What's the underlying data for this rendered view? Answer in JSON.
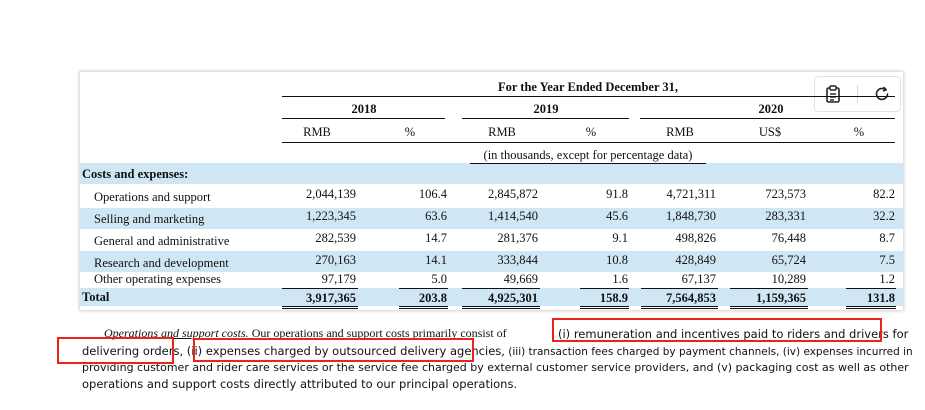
{
  "table": {
    "period_heading": "For the Year Ended December 31,",
    "years": [
      "2018",
      "2019",
      "2020"
    ],
    "units": [
      "RMB",
      "%",
      "RMB",
      "%",
      "RMB",
      "US$",
      "%"
    ],
    "unit_note": "(in thousands, except for percentage data)",
    "section_label": "Costs and expenses:",
    "rows": [
      {
        "label": "Operations and support",
        "values": [
          "2,044,139",
          "106.4",
          "2,845,872",
          "91.8",
          "4,721,311",
          "723,573",
          "82.2"
        ]
      },
      {
        "label": "Selling and marketing",
        "values": [
          "1,223,345",
          "63.6",
          "1,414,540",
          "45.6",
          "1,848,730",
          "283,331",
          "32.2"
        ]
      },
      {
        "label": "General and administrative",
        "values": [
          "282,539",
          "14.7",
          "281,376",
          "9.1",
          "498,826",
          "76,448",
          "8.7"
        ]
      },
      {
        "label": "Research and development",
        "values": [
          "270,163",
          "14.1",
          "333,844",
          "10.8",
          "428,849",
          "65,724",
          "7.5"
        ]
      },
      {
        "label": "Other operating expenses",
        "values": [
          "97,179",
          "5.0",
          "49,669",
          "1.6",
          "67,137",
          "10,289",
          "1.2"
        ]
      }
    ],
    "total": {
      "label": "Total",
      "values": [
        "3,917,365",
        "203.8",
        "4,925,301",
        "158.9",
        "7,564,853",
        "1,159,365",
        "131.8"
      ]
    }
  },
  "toolbar": {
    "copy_icon": "clipboard-icon",
    "refresh_icon": "refresh-icon"
  },
  "paragraph": {
    "line1_heading": "Operations and support costs.",
    "line1_text": " Our operations and support costs primarily consist of",
    "highlight1": "(i) remuneration and incentives paid to riders and drivers for",
    "highlight2": "delivering orders",
    "line2_sep": ", (ii)",
    "highlight3": "expenses charged by outsourced delivery agencies,",
    "line2_rest": " (iii) transaction fees charged by payment channels, (iv) expenses incurred in",
    "line3": "providing customer and rider care services or the service fee charged by external customer service providers, and (v) packaging cost as well as other",
    "line4": "operations and support costs directly attributed to our principal operations."
  },
  "colors": {
    "band": "#cfe7f5",
    "highlight_border": "#e8241b"
  }
}
